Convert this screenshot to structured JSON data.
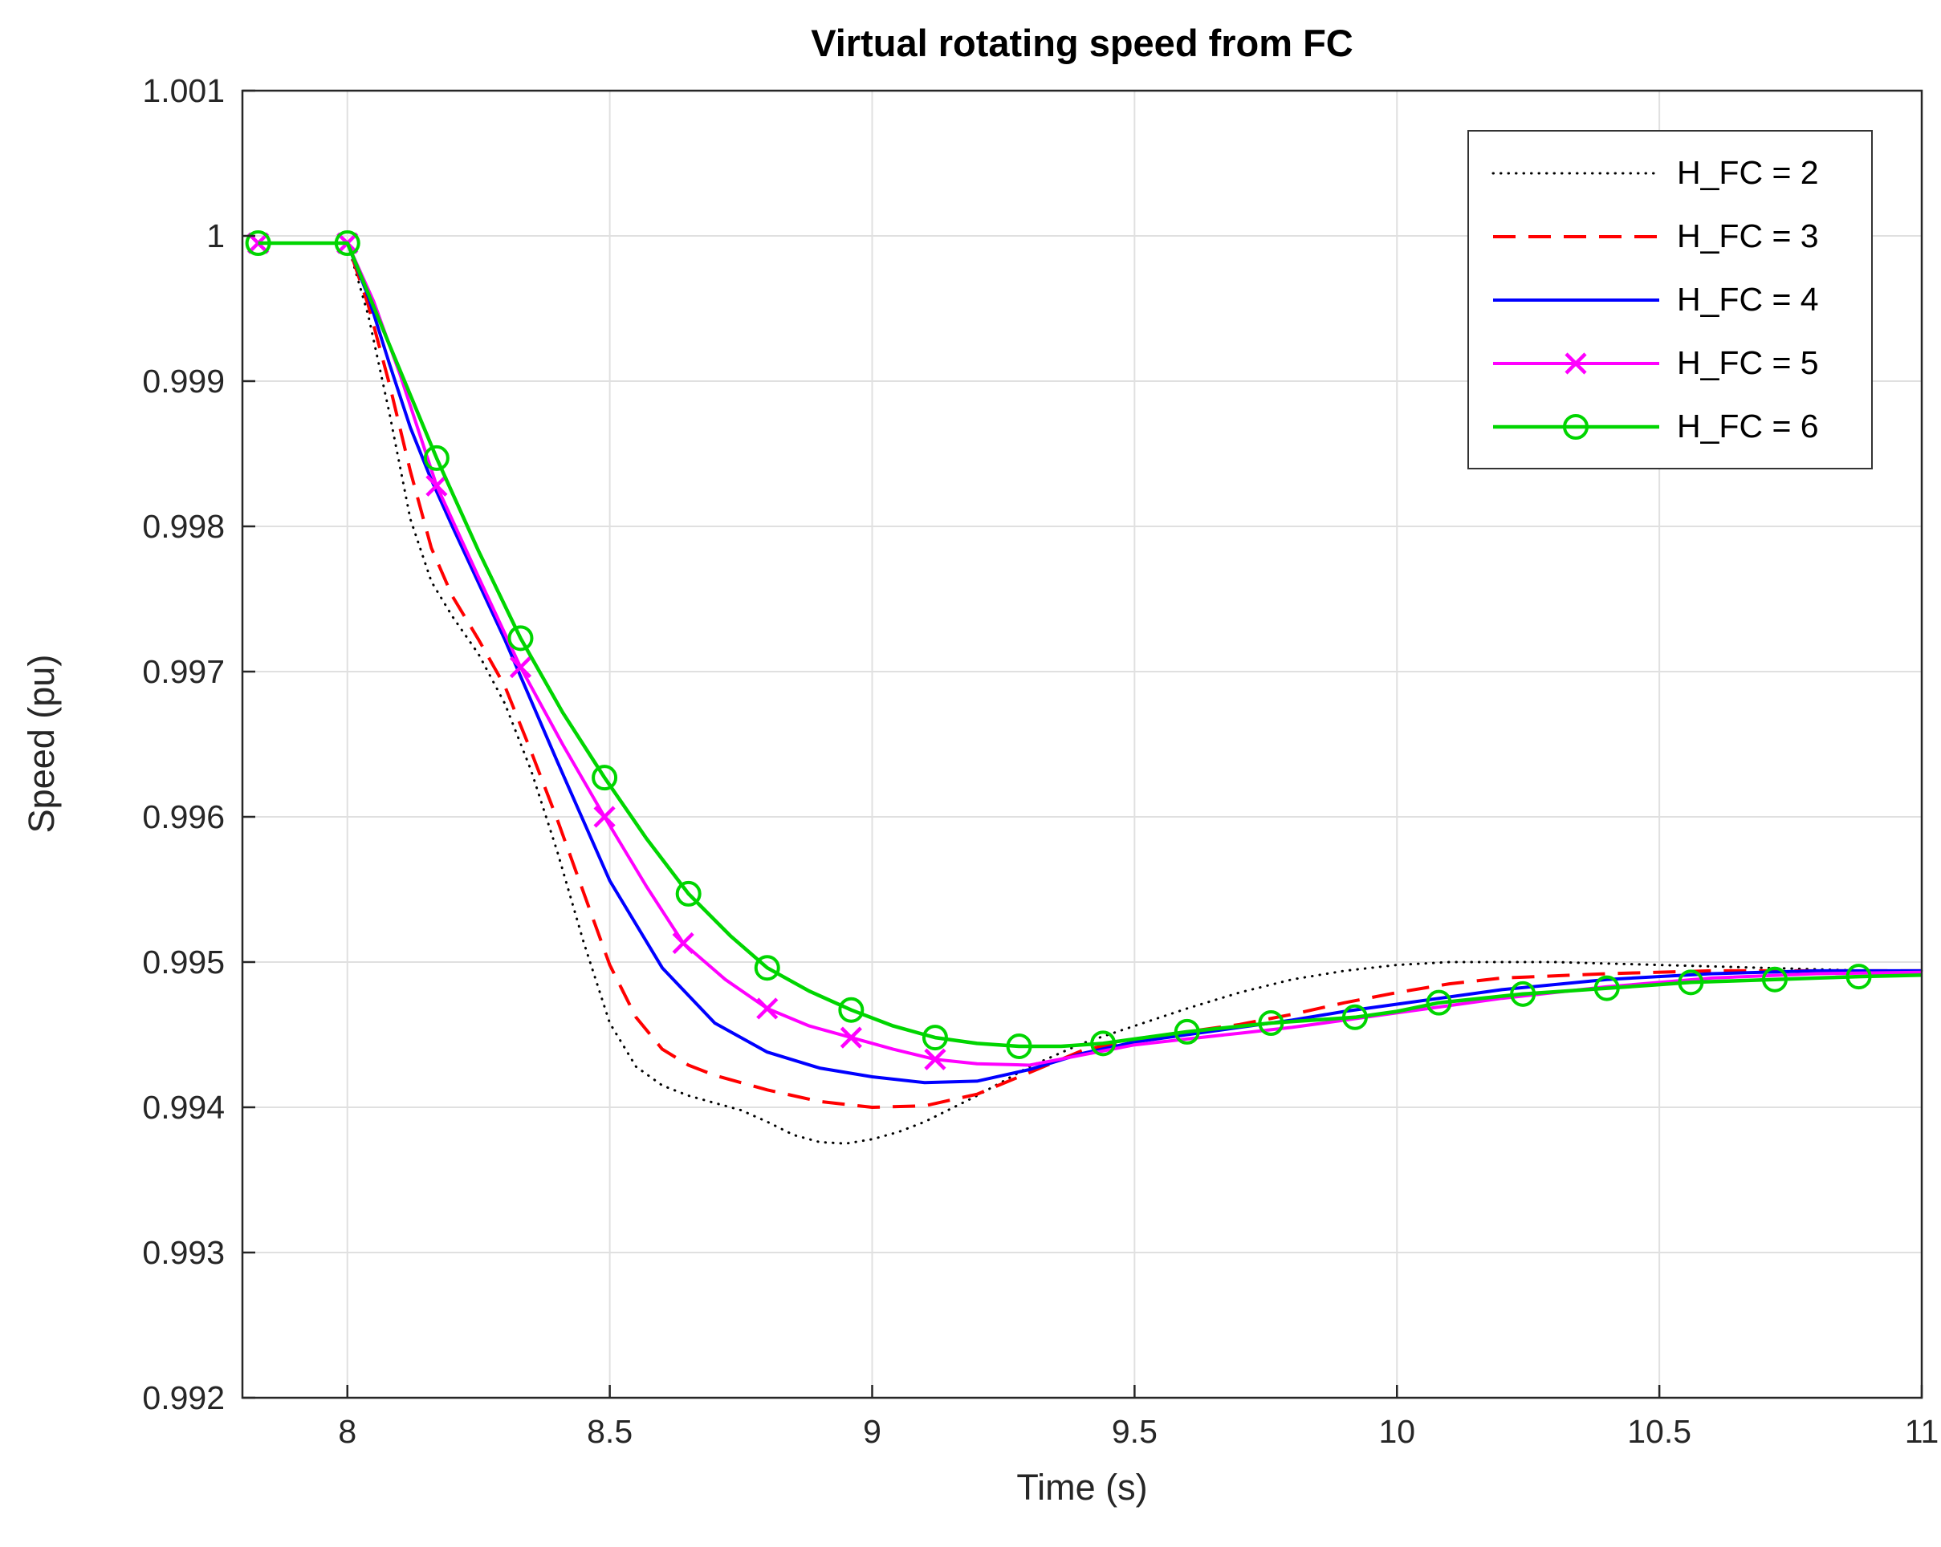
{
  "chart_data": {
    "type": "line",
    "title": "Virtual rotating speed from FC",
    "xlabel": "Time (s)",
    "ylabel": "Speed (pu)",
    "xlim": [
      7.8,
      11
    ],
    "ylim": [
      0.992,
      1.001
    ],
    "xticks": [
      8,
      8.5,
      9,
      9.5,
      10,
      10.5,
      11
    ],
    "xtick_labels": [
      "8",
      "8.5",
      "9",
      "9.5",
      "10",
      "10.5",
      "11"
    ],
    "yticks": [
      0.992,
      0.993,
      0.994,
      0.995,
      0.996,
      0.997,
      0.998,
      0.999,
      1,
      1.001
    ],
    "ytick_labels": [
      "0.992",
      "0.993",
      "0.994",
      "0.995",
      "0.996",
      "0.997",
      "0.998",
      "0.999",
      "1",
      "1.001"
    ],
    "grid": true,
    "legend_position": "top-right",
    "colors": {
      "background": "#ffffff",
      "grid": "#e0e0e0",
      "axis": "#262626"
    },
    "series": [
      {
        "id": "hfc-2",
        "name": "H_FC = 2",
        "color": "#000000",
        "line_style": "dotted",
        "marker": "none",
        "points": [
          [
            7.83,
            0.99995
          ],
          [
            8.0,
            0.99995
          ],
          [
            8.04,
            0.99945
          ],
          [
            8.08,
            0.99878
          ],
          [
            8.12,
            0.99805
          ],
          [
            8.16,
            0.99762
          ],
          [
            8.2,
            0.99738
          ],
          [
            8.25,
            0.99712
          ],
          [
            8.3,
            0.99678
          ],
          [
            8.35,
            0.99632
          ],
          [
            8.4,
            0.99576
          ],
          [
            8.45,
            0.99514
          ],
          [
            8.5,
            0.99458
          ],
          [
            8.55,
            0.99428
          ],
          [
            8.6,
            0.99415
          ],
          [
            8.65,
            0.99408
          ],
          [
            8.7,
            0.99403
          ],
          [
            8.75,
            0.99398
          ],
          [
            8.8,
            0.9939
          ],
          [
            8.85,
            0.99381
          ],
          [
            8.9,
            0.99376
          ],
          [
            8.95,
            0.99375
          ],
          [
            9.0,
            0.99378
          ],
          [
            9.05,
            0.99383
          ],
          [
            9.1,
            0.9939
          ],
          [
            9.2,
            0.99408
          ],
          [
            9.3,
            0.99428
          ],
          [
            9.4,
            0.99444
          ],
          [
            9.5,
            0.99456
          ],
          [
            9.6,
            0.99468
          ],
          [
            9.7,
            0.99479
          ],
          [
            9.8,
            0.99488
          ],
          [
            9.9,
            0.99494
          ],
          [
            10.0,
            0.99498
          ],
          [
            10.1,
            0.995
          ],
          [
            10.3,
            0.995
          ],
          [
            10.5,
            0.99498
          ],
          [
            10.7,
            0.99496
          ],
          [
            10.9,
            0.99494
          ],
          [
            11.0,
            0.99494
          ]
        ],
        "marker_points": []
      },
      {
        "id": "hfc-3",
        "name": "H_FC = 3",
        "color": "#ff0000",
        "line_style": "dashed",
        "marker": "none",
        "points": [
          [
            7.83,
            0.99995
          ],
          [
            8.0,
            0.99995
          ],
          [
            8.04,
            0.99952
          ],
          [
            8.08,
            0.99898
          ],
          [
            8.12,
            0.99838
          ],
          [
            8.16,
            0.99785
          ],
          [
            8.2,
            0.99752
          ],
          [
            8.25,
            0.99722
          ],
          [
            8.3,
            0.9969
          ],
          [
            8.35,
            0.99645
          ],
          [
            8.4,
            0.99598
          ],
          [
            8.45,
            0.99548
          ],
          [
            8.5,
            0.99498
          ],
          [
            8.55,
            0.99462
          ],
          [
            8.6,
            0.9944
          ],
          [
            8.65,
            0.99429
          ],
          [
            8.7,
            0.99422
          ],
          [
            8.8,
            0.99412
          ],
          [
            8.9,
            0.99404
          ],
          [
            9.0,
            0.994
          ],
          [
            9.1,
            0.99401
          ],
          [
            9.2,
            0.99409
          ],
          [
            9.3,
            0.99424
          ],
          [
            9.4,
            0.99439
          ],
          [
            9.5,
            0.99447
          ],
          [
            9.6,
            0.99452
          ],
          [
            9.7,
            0.99457
          ],
          [
            9.8,
            0.99464
          ],
          [
            9.9,
            0.99472
          ],
          [
            10.0,
            0.99479
          ],
          [
            10.1,
            0.99485
          ],
          [
            10.2,
            0.99489
          ],
          [
            10.4,
            0.99492
          ],
          [
            10.6,
            0.99494
          ],
          [
            10.8,
            0.99494
          ],
          [
            11.0,
            0.99494
          ]
        ],
        "marker_points": []
      },
      {
        "id": "hfc-4",
        "name": "H_FC = 4",
        "color": "#0000ff",
        "line_style": "solid",
        "marker": "none",
        "points": [
          [
            7.83,
            0.99995
          ],
          [
            8.0,
            0.99995
          ],
          [
            8.04,
            0.99958
          ],
          [
            8.08,
            0.99912
          ],
          [
            8.12,
            0.99868
          ],
          [
            8.16,
            0.99832
          ],
          [
            8.2,
            0.998
          ],
          [
            8.3,
            0.99722
          ],
          [
            8.4,
            0.99638
          ],
          [
            8.5,
            0.99556
          ],
          [
            8.6,
            0.99496
          ],
          [
            8.7,
            0.99458
          ],
          [
            8.8,
            0.99438
          ],
          [
            8.9,
            0.99427
          ],
          [
            9.0,
            0.99421
          ],
          [
            9.1,
            0.99417
          ],
          [
            9.2,
            0.99418
          ],
          [
            9.3,
            0.99426
          ],
          [
            9.4,
            0.99437
          ],
          [
            9.5,
            0.99445
          ],
          [
            9.6,
            0.9945
          ],
          [
            9.7,
            0.99455
          ],
          [
            9.8,
            0.9946
          ],
          [
            9.9,
            0.99466
          ],
          [
            10.0,
            0.99471
          ],
          [
            10.2,
            0.99481
          ],
          [
            10.4,
            0.99488
          ],
          [
            10.6,
            0.99492
          ],
          [
            10.8,
            0.99494
          ],
          [
            11.0,
            0.99494
          ]
        ],
        "marker_points": []
      },
      {
        "id": "hfc-5",
        "name": "H_FC = 5",
        "color": "#ff00ff",
        "line_style": "solid",
        "marker": "x",
        "points": [
          [
            7.83,
            0.99995
          ],
          [
            8.0,
            0.99995
          ],
          [
            8.05,
            0.99955
          ],
          [
            8.1,
            0.99905
          ],
          [
            8.17,
            0.99828
          ],
          [
            8.25,
            0.99765
          ],
          [
            8.33,
            0.99703
          ],
          [
            8.41,
            0.9965
          ],
          [
            8.49,
            0.996
          ],
          [
            8.57,
            0.99552
          ],
          [
            8.64,
            0.99513
          ],
          [
            8.72,
            0.99488
          ],
          [
            8.8,
            0.99468
          ],
          [
            8.88,
            0.99456
          ],
          [
            8.96,
            0.99448
          ],
          [
            9.04,
            0.9944
          ],
          [
            9.12,
            0.99433
          ],
          [
            9.2,
            0.9943
          ],
          [
            9.3,
            0.99429
          ],
          [
            9.4,
            0.99436
          ],
          [
            9.5,
            0.99443
          ],
          [
            9.6,
            0.99447
          ],
          [
            9.7,
            0.99451
          ],
          [
            9.8,
            0.99455
          ],
          [
            9.9,
            0.9946
          ],
          [
            10.0,
            0.99465
          ],
          [
            10.2,
            0.99475
          ],
          [
            10.4,
            0.99483
          ],
          [
            10.6,
            0.99489
          ],
          [
            10.8,
            0.99492
          ],
          [
            11.0,
            0.99493
          ]
        ],
        "marker_points": [
          [
            7.83,
            0.99995
          ],
          [
            8.0,
            0.99995
          ],
          [
            8.17,
            0.99828
          ],
          [
            8.33,
            0.99703
          ],
          [
            8.49,
            0.996
          ],
          [
            8.64,
            0.99513
          ],
          [
            8.8,
            0.99468
          ],
          [
            8.96,
            0.99448
          ],
          [
            9.12,
            0.99433
          ]
        ]
      },
      {
        "id": "hfc-6",
        "name": "H_FC = 6",
        "color": "#00d500",
        "line_style": "solid",
        "marker": "o",
        "points": [
          [
            7.83,
            0.99995
          ],
          [
            8.0,
            0.99995
          ],
          [
            8.08,
            0.99925
          ],
          [
            8.17,
            0.99847
          ],
          [
            8.25,
            0.99783
          ],
          [
            8.33,
            0.99723
          ],
          [
            8.41,
            0.99672
          ],
          [
            8.49,
            0.99627
          ],
          [
            8.57,
            0.99585
          ],
          [
            8.65,
            0.99547
          ],
          [
            8.73,
            0.99518
          ],
          [
            8.8,
            0.99496
          ],
          [
            8.88,
            0.9948
          ],
          [
            8.96,
            0.99467
          ],
          [
            9.04,
            0.99456
          ],
          [
            9.12,
            0.99448
          ],
          [
            9.2,
            0.99444
          ],
          [
            9.28,
            0.99442
          ],
          [
            9.36,
            0.99442
          ],
          [
            9.44,
            0.99444
          ],
          [
            9.52,
            0.99448
          ],
          [
            9.6,
            0.99452
          ],
          [
            9.68,
            0.99455
          ],
          [
            9.76,
            0.99458
          ],
          [
            9.84,
            0.9946
          ],
          [
            9.92,
            0.99462
          ],
          [
            10.0,
            0.99466
          ],
          [
            10.08,
            0.99472
          ],
          [
            10.16,
            0.99475
          ],
          [
            10.24,
            0.99478
          ],
          [
            10.32,
            0.9948
          ],
          [
            10.4,
            0.99482
          ],
          [
            10.48,
            0.99484
          ],
          [
            10.56,
            0.99486
          ],
          [
            10.64,
            0.99487
          ],
          [
            10.72,
            0.99488
          ],
          [
            10.8,
            0.99489
          ],
          [
            10.88,
            0.9949
          ],
          [
            11.0,
            0.99491
          ]
        ],
        "marker_points": [
          [
            7.83,
            0.99995
          ],
          [
            8.0,
            0.99995
          ],
          [
            8.17,
            0.99847
          ],
          [
            8.33,
            0.99723
          ],
          [
            8.49,
            0.99627
          ],
          [
            8.65,
            0.99547
          ],
          [
            8.8,
            0.99496
          ],
          [
            8.96,
            0.99467
          ],
          [
            9.12,
            0.99448
          ],
          [
            9.28,
            0.99442
          ],
          [
            9.44,
            0.99444
          ],
          [
            9.6,
            0.99452
          ],
          [
            9.76,
            0.99458
          ],
          [
            9.92,
            0.99462
          ],
          [
            10.08,
            0.99472
          ],
          [
            10.24,
            0.99478
          ],
          [
            10.4,
            0.99482
          ],
          [
            10.56,
            0.99486
          ],
          [
            10.72,
            0.99488
          ],
          [
            10.88,
            0.9949
          ]
        ]
      }
    ]
  }
}
